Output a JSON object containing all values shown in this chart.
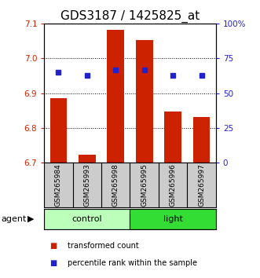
{
  "title": "GDS3187 / 1425825_at",
  "samples": [
    "GSM265984",
    "GSM265993",
    "GSM265998",
    "GSM265995",
    "GSM265996",
    "GSM265997"
  ],
  "bar_values": [
    6.885,
    6.722,
    7.082,
    7.052,
    6.848,
    6.832
  ],
  "bar_baseline": 6.7,
  "percentile_values": [
    65,
    63,
    67,
    67,
    63,
    63
  ],
  "ylim_left": [
    6.7,
    7.1
  ],
  "ylim_right": [
    0,
    100
  ],
  "yticks_left": [
    6.7,
    6.8,
    6.9,
    7.0,
    7.1
  ],
  "yticks_right": [
    0,
    25,
    50,
    75,
    100
  ],
  "ytick_labels_right": [
    "0",
    "25",
    "50",
    "75",
    "100%"
  ],
  "bar_color": "#cc2200",
  "dot_color": "#2222cc",
  "group_ranges": [
    [
      -0.5,
      2.5,
      "control",
      "#bbffbb"
    ],
    [
      2.5,
      5.5,
      "light",
      "#33dd33"
    ]
  ],
  "bg_plot": "#ffffff",
  "bg_sample": "#cccccc",
  "title_fontsize": 11,
  "tick_fontsize": 7.5,
  "sample_fontsize": 6.5,
  "legend_fontsize": 7,
  "group_fontsize": 8,
  "agent_fontsize": 8,
  "legend_items": [
    {
      "color": "#cc2200",
      "label": "transformed count"
    },
    {
      "color": "#2222cc",
      "label": "percentile rank within the sample"
    }
  ]
}
